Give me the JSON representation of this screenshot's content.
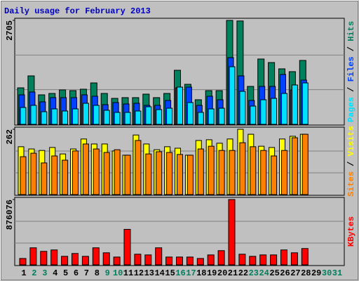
{
  "chart_data": [
    {
      "type": "bar",
      "title": "Daily usage for February 2013",
      "ylim": [
        0,
        2705
      ],
      "yticks": [
        2705
      ],
      "grid_divisions": 3,
      "legend_separator": " / ",
      "series": [
        {
          "name": "Hits",
          "color": "#00805c",
          "values": [
            950,
            1261,
            768,
            804,
            896,
            877,
            914,
            1078,
            804,
            676,
            695,
            695,
            786,
            695,
            804,
            1407,
            1042,
            640,
            877,
            877,
            2705,
            2690,
            987,
            1700,
            1608,
            1444,
            1371,
            1663,
            null,
            null,
            null
          ]
        },
        {
          "name": "Files",
          "color": "#0040ff",
          "values": [
            768,
            841,
            585,
            695,
            695,
            695,
            768,
            731,
            512,
            567,
            530,
            548,
            494,
            494,
            621,
            950,
            969,
            494,
            731,
            640,
            1736,
            1261,
            621,
            987,
            987,
            1298,
            896,
            1151,
            null,
            null,
            null
          ]
        },
        {
          "name": "Pages",
          "color": "#00e0ff",
          "values": [
            439,
            494,
            329,
            402,
            347,
            402,
            548,
            494,
            366,
            311,
            311,
            347,
            457,
            384,
            420,
            969,
            567,
            311,
            402,
            420,
            1499,
            859,
            475,
            640,
            676,
            804,
            1024,
            1078,
            null,
            null,
            null
          ]
        }
      ]
    },
    {
      "type": "bar",
      "ylim": [
        0,
        262
      ],
      "yticks": [
        262
      ],
      "grid_divisions": 3,
      "legend_separator": " / ",
      "series": [
        {
          "name": "Visits",
          "color": "#ffff00",
          "values": [
            192,
            183,
            177,
            189,
            163,
            183,
            223,
            203,
            203,
            175,
            158,
            239,
            203,
            180,
            192,
            186,
            158,
            217,
            220,
            206,
            223,
            262,
            242,
            194,
            189,
            223,
            234,
            242,
            null,
            null,
            null
          ]
        },
        {
          "name": "Sites",
          "color": "#ff8000",
          "values": [
            152,
            166,
            127,
            155,
            138,
            175,
            203,
            183,
            169,
            180,
            158,
            217,
            163,
            172,
            169,
            161,
            158,
            183,
            194,
            177,
            177,
            208,
            192,
            177,
            155,
            177,
            228,
            242,
            null,
            null,
            null
          ]
        }
      ]
    },
    {
      "type": "bar",
      "ylim": [
        0,
        876076
      ],
      "yticks": [
        876076
      ],
      "grid_divisions": 3,
      "series": [
        {
          "name": "KBytes",
          "color": "#ff0000",
          "values": [
            85707,
            228552,
            180937,
            199983,
            114276,
            152368,
            114276,
            228552,
            161891,
            104753,
            476150,
            142845,
            133322,
            228552,
            104753,
            104753,
            104753,
            85707,
            133322,
            190460,
            876076,
            142845,
            114276,
            133322,
            133322,
            199983,
            161891,
            219029,
            null,
            null,
            null
          ]
        }
      ],
      "categories": [
        "1",
        "2",
        "3",
        "4",
        "5",
        "6",
        "7",
        "8",
        "9",
        "10",
        "11",
        "12",
        "13",
        "14",
        "15",
        "16",
        "17",
        "18",
        "19",
        "20",
        "21",
        "22",
        "23",
        "24",
        "25",
        "26",
        "27",
        "28",
        "29",
        "30",
        "31"
      ],
      "category_colors": [
        "#000000",
        "#00805c",
        "#00805c",
        "#000000",
        "#000000",
        "#000000",
        "#000000",
        "#000000",
        "#00805c",
        "#00805c",
        "#000000",
        "#000000",
        "#000000",
        "#000000",
        "#000000",
        "#00805c",
        "#00805c",
        "#000000",
        "#000000",
        "#000000",
        "#000000",
        "#000000",
        "#00805c",
        "#00805c",
        "#000000",
        "#000000",
        "#000000",
        "#000000",
        "#000000",
        "#00805c",
        "#00805c"
      ]
    }
  ]
}
